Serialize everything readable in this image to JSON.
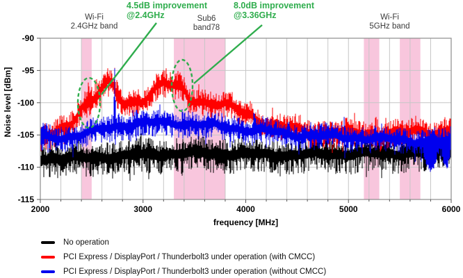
{
  "annotations": {
    "improvement_1": {
      "line1": "4.5dB improvement",
      "line2": "@2.4GHz"
    },
    "improvement_2": {
      "line1": "8.0dB improvement",
      "line2": "@3.36GHz"
    }
  },
  "band_labels": {
    "wifi24": {
      "line1": "Wi-Fi",
      "line2": "2.4GHz band"
    },
    "sub6": {
      "line1": "Sub6",
      "line2": "band78"
    },
    "wifi5": {
      "line1": "Wi-Fi",
      "line2": "5GHz band"
    }
  },
  "axes": {
    "xlabel": "frequency [MHz]",
    "ylabel": "Noise level [dBm]"
  },
  "legend": {
    "items": [
      {
        "label": "No operation",
        "color": "#000000"
      },
      {
        "label": "PCI Express / DisplayPort / Thunderbolt3 under operation (with CMCC)",
        "color": "#FF0000"
      },
      {
        "label": "PCI Express / DisplayPort / Thunderbolt3 under operation (without CMCC)",
        "color": "#0000EE"
      }
    ]
  },
  "colors": {
    "highlight_band": "#F8C6DD",
    "gridline": "#C6C6C6",
    "frame": "#8C8C8C",
    "annotation_green": "#2FAD4D"
  },
  "chart_data": {
    "type": "line",
    "title": "",
    "xlabel": "frequency [MHz]",
    "ylabel": "Noise level [dBm]",
    "xlim": [
      2000,
      6000
    ],
    "ylim": [
      -115,
      -90
    ],
    "x_ticks": [
      2000,
      3000,
      4000,
      5000,
      6000
    ],
    "y_ticks": [
      -90,
      -95,
      -100,
      -105,
      -110,
      -115
    ],
    "minor_x_grid_mhz": 200,
    "grid": true,
    "legend_position": "bottom-left",
    "highlight_bands": [
      {
        "name": "Wi-Fi 2.4GHz band",
        "from_mhz": 2400,
        "to_mhz": 2500
      },
      {
        "name": "Sub6 band78",
        "from_mhz": 3300,
        "to_mhz": 3800
      },
      {
        "name": "Wi-Fi 5GHz band (low)",
        "from_mhz": 5150,
        "to_mhz": 5300
      },
      {
        "name": "Wi-Fi 5GHz band (high)",
        "from_mhz": 5500,
        "to_mhz": 5700
      }
    ],
    "callouts": [
      {
        "label": "4.5dB improvement @2.4GHz",
        "improvement_db": 4.5,
        "at_mhz": 2400
      },
      {
        "label": "8.0dB improvement @3.36GHz",
        "improvement_db": 8.0,
        "at_mhz": 3360
      }
    ],
    "series": [
      {
        "name": "No operation",
        "color": "#000000",
        "envelope": [
          [
            2000,
            -108.6
          ],
          [
            2400,
            -108.5
          ],
          [
            2800,
            -108.2
          ],
          [
            3200,
            -107.9
          ],
          [
            3600,
            -107.7
          ],
          [
            4000,
            -107.9
          ],
          [
            4400,
            -108.0
          ],
          [
            4800,
            -107.9
          ],
          [
            5200,
            -107.8
          ],
          [
            5600,
            -107.7
          ],
          [
            6000,
            -107.4
          ]
        ],
        "spread_up": 1.9,
        "spread_down": 2.4,
        "wobble": 0.35,
        "spikes": [],
        "down_spikes": []
      },
      {
        "name": "PCI Express / DisplayPort / Thunderbolt3 under operation (with CMCC)",
        "color": "#FF0000",
        "envelope": [
          [
            2000,
            -105.3
          ],
          [
            2150,
            -105.0
          ],
          [
            2300,
            -103.2
          ],
          [
            2400,
            -100.6
          ],
          [
            2500,
            -99.2
          ],
          [
            2600,
            -97.6
          ],
          [
            2660,
            -97.1
          ],
          [
            2720,
            -98.0
          ],
          [
            2800,
            -100.4
          ],
          [
            2900,
            -100.0
          ],
          [
            3000,
            -99.2
          ],
          [
            3100,
            -98.0
          ],
          [
            3200,
            -96.9
          ],
          [
            3270,
            -97.4
          ],
          [
            3330,
            -98.0
          ],
          [
            3380,
            -97.9
          ],
          [
            3450,
            -99.2
          ],
          [
            3550,
            -99.6
          ],
          [
            3700,
            -100.0
          ],
          [
            3850,
            -100.8
          ],
          [
            4000,
            -101.6
          ],
          [
            4150,
            -102.6
          ],
          [
            4300,
            -103.6
          ],
          [
            4500,
            -104.3
          ],
          [
            4800,
            -104.7
          ],
          [
            5200,
            -104.8
          ],
          [
            5600,
            -104.6
          ],
          [
            6000,
            -104.2
          ]
        ],
        "spread_up": 1.6,
        "spread_down": 1.8,
        "wobble": 0.7,
        "spikes": [
          [
            2470,
            -96.8,
            12
          ],
          [
            2655,
            -95.0,
            10
          ],
          [
            2723,
            -94.2,
            6
          ],
          [
            2950,
            -98.5,
            8
          ],
          [
            3110,
            -96.3,
            9
          ],
          [
            3225,
            -94.7,
            10
          ],
          [
            3300,
            -96.9,
            7
          ],
          [
            3360,
            -96.1,
            8
          ],
          [
            5985,
            -102.8,
            8
          ]
        ],
        "down_spikes": []
      },
      {
        "name": "PCI Express / DisplayPort / Thunderbolt3 under operation (without CMCC)",
        "color": "#0000EE",
        "envelope": [
          [
            2000,
            -105.4
          ],
          [
            2300,
            -105.2
          ],
          [
            2500,
            -104.6
          ],
          [
            2650,
            -103.8
          ],
          [
            2800,
            -103.4
          ],
          [
            3000,
            -103.1
          ],
          [
            3300,
            -103.0
          ],
          [
            3600,
            -103.4
          ],
          [
            3900,
            -103.9
          ],
          [
            4200,
            -104.4
          ],
          [
            4500,
            -104.9
          ],
          [
            4800,
            -105.2
          ],
          [
            5200,
            -105.4
          ],
          [
            5600,
            -105.8
          ],
          [
            6000,
            -106.0
          ]
        ],
        "spread_up": 1.5,
        "spread_down": 1.8,
        "wobble": 0.45,
        "spikes": [
          [
            2030,
            -102.4,
            5
          ],
          [
            2724,
            -94.6,
            5
          ],
          [
            2900,
            -101.3,
            7
          ],
          [
            3150,
            -101.2,
            6
          ],
          [
            4080,
            -100.9,
            7
          ],
          [
            4420,
            -102.3,
            6
          ],
          [
            4960,
            -101.9,
            5
          ],
          [
            5840,
            -103.5,
            5
          ]
        ],
        "down_spikes": [
          [
            5800,
            -110.3,
            60
          ],
          [
            5950,
            -110.0,
            40
          ]
        ]
      }
    ]
  }
}
